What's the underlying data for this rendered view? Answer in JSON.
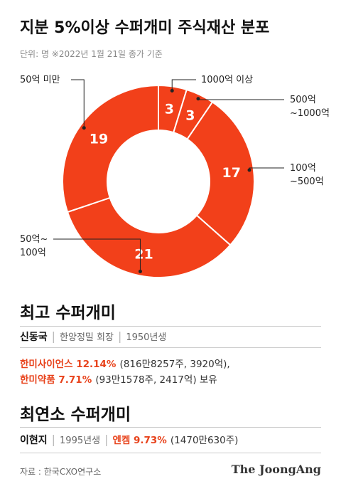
{
  "chart_data": {
    "type": "donut",
    "title": "지분 5%이상 수퍼개미 주식재산 분포",
    "subtitle": "단위: 명 ※2022년 1월 21일 종가 기준",
    "categories": [
      "1000억 이상",
      "500억\n~1000억",
      "100억\n~500억",
      "50억~\n100억",
      "50억 미만"
    ],
    "values": [
      3,
      3,
      17,
      21,
      19
    ],
    "color": "#f2401a"
  },
  "sections": [
    {
      "heading": "최고 수퍼개미",
      "name": "신동국",
      "details": [
        "한양정밀 회장",
        "1950년생"
      ],
      "holdings": [
        {
          "stock": "한미사이언스 12.14%",
          "detail": "(816만8257주, 3920억),"
        },
        {
          "stock": "한미약품 7.71%",
          "detail": "(93만1578주, 2417억) 보유"
        }
      ]
    },
    {
      "heading": "최연소 수퍼개미",
      "name": "이현지",
      "details": [
        "1995년생"
      ],
      "holdings": [
        {
          "stock": "엔켐 9.73%",
          "detail": "(1470만630주)"
        }
      ]
    }
  ],
  "footer": {
    "source": "자료 : 한국CXO연구소",
    "brand": "The JoongAng"
  }
}
